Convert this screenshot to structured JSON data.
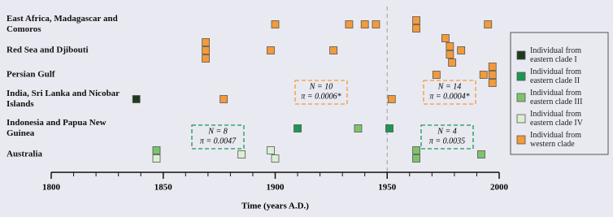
{
  "chart_data": {
    "type": "scatter",
    "categories": [
      "East Africa, Madagascar and Comoros",
      "Red Sea and Djibouti",
      "Persian Gulf",
      "India, Sri Lanka and Nicobar Islands",
      "Indonesia and Papua New Guinea",
      "Australia"
    ],
    "series": [
      {
        "name": "Individual from eastern clade I",
        "color": "#1f3b1f",
        "x": [
          1838
        ],
        "y": [
          "India, Sri Lanka and Nicobar Islands"
        ]
      },
      {
        "name": "Individual from eastern clade II",
        "color": "#1a9850",
        "x": [
          1910,
          1951
        ],
        "y": [
          "Indonesia and Papua New Guinea",
          "Indonesia and Papua New Guinea"
        ]
      },
      {
        "name": "Individual from eastern clade III",
        "color": "#7dc36b",
        "x": [
          1937,
          1847,
          1963,
          1963,
          1992
        ],
        "y": [
          "Indonesia and Papua New Guinea",
          "Australia",
          "Australia",
          "Australia",
          "Australia"
        ]
      },
      {
        "name": "Individual from eastern clade IV",
        "color": "#d9f0d3",
        "x": [
          1847,
          1885,
          1898,
          1900
        ],
        "y": [
          "Australia",
          "Australia",
          "Australia",
          "Australia"
        ]
      },
      {
        "name": "Individual from western clade",
        "color": "#f39a3a",
        "x": [
          1900,
          1933,
          1940,
          1945,
          1963,
          1963,
          1995,
          1869,
          1869,
          1869,
          1898,
          1926,
          1976,
          1978,
          1978,
          1979,
          1983,
          1972,
          1993,
          1997,
          1997,
          1997,
          1877,
          1952
        ],
        "y": [
          "East Africa, Madagascar and Comoros",
          "East Africa, Madagascar and Comoros",
          "East Africa, Madagascar and Comoros",
          "East Africa, Madagascar and Comoros",
          "East Africa, Madagascar and Comoros",
          "East Africa, Madagascar and Comoros",
          "East Africa, Madagascar and Comoros",
          "Red Sea and Djibouti",
          "Red Sea and Djibouti",
          "Red Sea and Djibouti",
          "Red Sea and Djibouti",
          "Red Sea and Djibouti",
          "Red Sea and Djibouti",
          "Red Sea and Djibouti",
          "Red Sea and Djibouti",
          "Red Sea and Djibouti",
          "Red Sea and Djibouti",
          "Persian Gulf",
          "Persian Gulf",
          "Persian Gulf",
          "Persian Gulf",
          "Persian Gulf",
          "India, Sri Lanka and Nicobar Islands",
          "India, Sri Lanka and Nicobar Islands"
        ]
      }
    ],
    "xlim": [
      1800,
      2000
    ],
    "xticks": [
      1800,
      1850,
      1900,
      1950,
      2000
    ],
    "xminorticks": [
      1810,
      1820,
      1830,
      1840,
      1860,
      1870,
      1880,
      1890,
      1910,
      1920,
      1930,
      1940,
      1960,
      1970,
      1980,
      1990
    ],
    "xlabel": "Time (years A.D.)",
    "reference_line": 1950,
    "annotations": [
      {
        "lines": [
          "N = 10",
          "π = 0.0006*"
        ],
        "color": "#f39a3a"
      },
      {
        "lines": [
          "N = 14",
          "π = 0.0004*"
        ],
        "color": "#f39a3a"
      },
      {
        "lines": [
          "N = 8",
          "π = 0.0047"
        ],
        "color": "#1a9850"
      },
      {
        "lines": [
          "N = 4",
          "π = 0.0035"
        ],
        "color": "#1a9850"
      }
    ],
    "legend": "right"
  }
}
